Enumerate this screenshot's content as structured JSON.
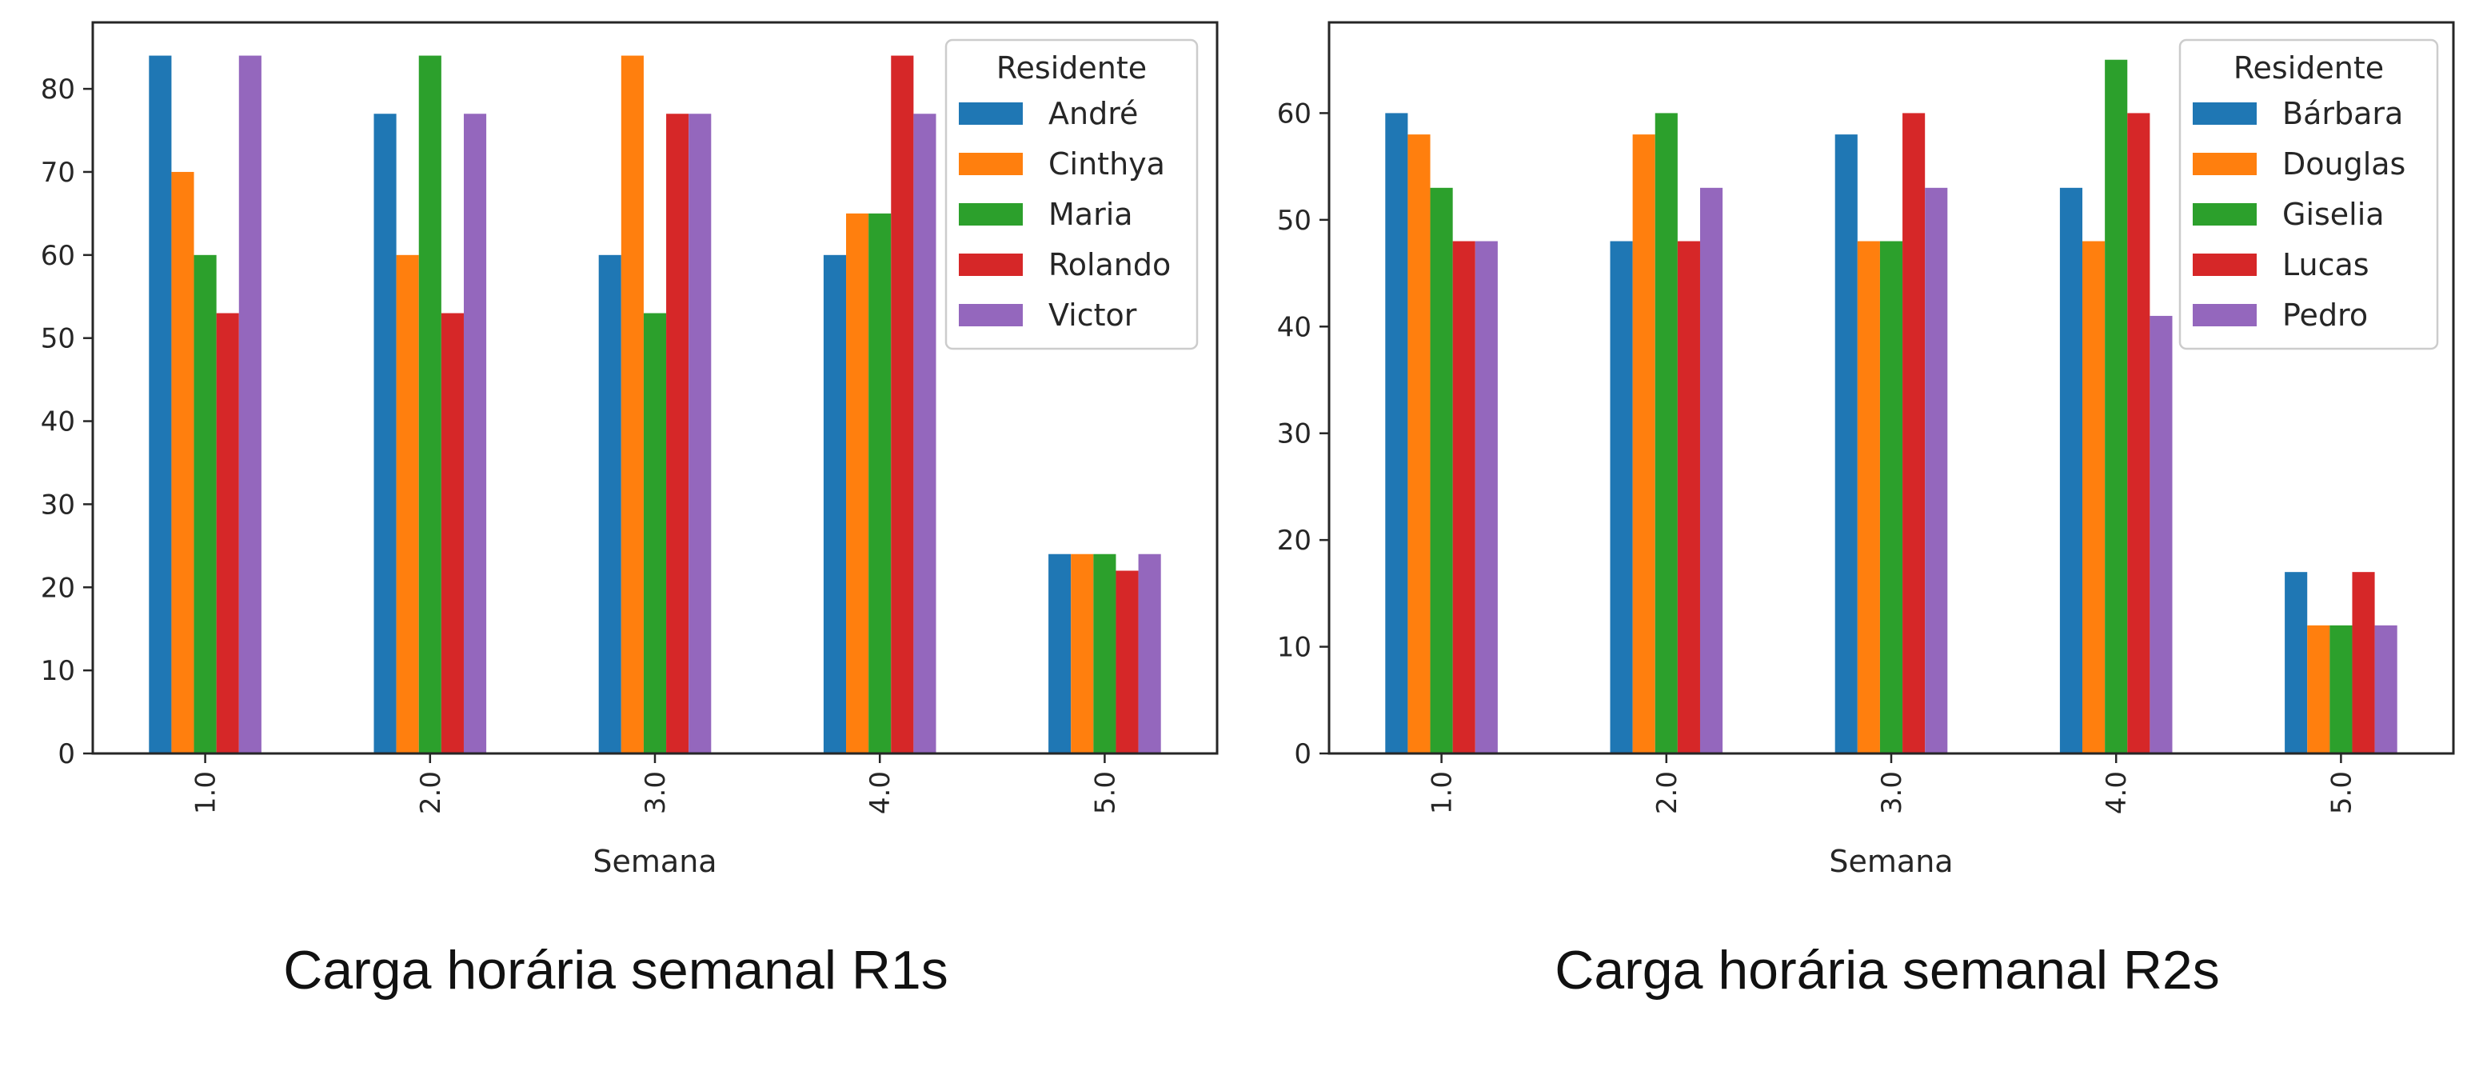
{
  "chart_data": [
    {
      "type": "bar",
      "title": "",
      "caption": "Carga horária semanal R1s",
      "xlabel": "Semana",
      "ylabel": "",
      "categories": [
        "1.0",
        "2.0",
        "3.0",
        "4.0",
        "5.0"
      ],
      "ylim": [
        0,
        88
      ],
      "yticks": [
        0,
        10,
        20,
        30,
        40,
        50,
        60,
        70,
        80
      ],
      "grid": false,
      "legend": {
        "title": "Residente",
        "placement": "top-right"
      },
      "series": [
        {
          "name": "André",
          "color": "#1f77b4",
          "values": [
            84,
            77,
            60,
            60,
            24
          ]
        },
        {
          "name": "Cinthya",
          "color": "#ff7f0e",
          "values": [
            70,
            60,
            84,
            65,
            24
          ]
        },
        {
          "name": "Maria",
          "color": "#2ca02c",
          "values": [
            60,
            84,
            53,
            65,
            24
          ]
        },
        {
          "name": "Rolando",
          "color": "#d62728",
          "values": [
            53,
            53,
            77,
            84,
            22
          ]
        },
        {
          "name": "Victor",
          "color": "#9467bd",
          "values": [
            84,
            77,
            77,
            77,
            24
          ]
        }
      ]
    },
    {
      "type": "bar",
      "title": "",
      "caption": "Carga horária semanal R2s",
      "xlabel": "Semana",
      "ylabel": "",
      "categories": [
        "1.0",
        "2.0",
        "3.0",
        "4.0",
        "5.0"
      ],
      "ylim": [
        0,
        68.5
      ],
      "yticks": [
        0,
        10,
        20,
        30,
        40,
        50,
        60
      ],
      "grid": false,
      "legend": {
        "title": "Residente",
        "placement": "top-right"
      },
      "series": [
        {
          "name": "Bárbara",
          "color": "#1f77b4",
          "values": [
            60,
            48,
            58,
            53,
            17
          ]
        },
        {
          "name": "Douglas",
          "color": "#ff7f0e",
          "values": [
            58,
            58,
            48,
            48,
            12
          ]
        },
        {
          "name": "Giselia",
          "color": "#2ca02c",
          "values": [
            53,
            60,
            48,
            65,
            12
          ]
        },
        {
          "name": "Lucas",
          "color": "#d62728",
          "values": [
            48,
            48,
            60,
            60,
            17
          ]
        },
        {
          "name": "Pedro",
          "color": "#9467bd",
          "values": [
            48,
            53,
            53,
            41,
            12
          ]
        }
      ]
    }
  ]
}
